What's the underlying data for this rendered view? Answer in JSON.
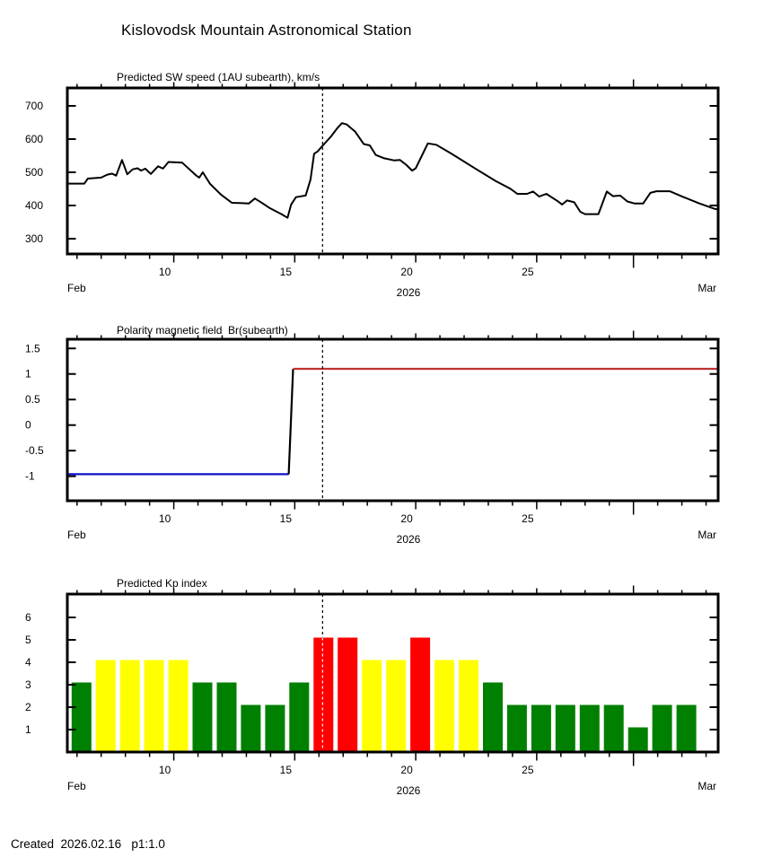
{
  "page": {
    "title": "Kislovodsk Mountain Astronomical Station",
    "footer": "Created  2026.02.16   p1:1.0"
  },
  "x_axis": {
    "month_start_label": "Feb",
    "month_end_label": "Mar",
    "year_label": "2026",
    "labeled_days": [
      10,
      15,
      20,
      25
    ],
    "long_tick_day": 29,
    "minor_tick_day_min": 6,
    "minor_tick_day_max": 32,
    "domain": [
      5.6,
      32.5
    ],
    "forecast_day": 16.15,
    "note": "days are day-of-February 2026; 29=Mar 1, 30=Mar 2, 31=Mar 3"
  },
  "chart_data": [
    {
      "id": "sw_speed",
      "type": "line",
      "title": "Predicted SW speed (1AU subearth), km/s",
      "yticks": [
        300,
        400,
        500,
        600,
        700
      ],
      "ylim": [
        254,
        754
      ],
      "grid": false,
      "line_color": "#000000",
      "points": [
        [
          5.6,
          466
        ],
        [
          6.3,
          466
        ],
        [
          6.45,
          481
        ],
        [
          7.0,
          484
        ],
        [
          7.25,
          493
        ],
        [
          7.45,
          496
        ],
        [
          7.62,
          490
        ],
        [
          7.86,
          537
        ],
        [
          8.08,
          494
        ],
        [
          8.3,
          509
        ],
        [
          8.5,
          512
        ],
        [
          8.65,
          505
        ],
        [
          8.82,
          511
        ],
        [
          9.05,
          495
        ],
        [
          9.35,
          518
        ],
        [
          9.55,
          511
        ],
        [
          9.78,
          531
        ],
        [
          10.35,
          529
        ],
        [
          10.9,
          492
        ],
        [
          11.05,
          484
        ],
        [
          11.2,
          500
        ],
        [
          11.5,
          465
        ],
        [
          11.95,
          433
        ],
        [
          12.4,
          408
        ],
        [
          12.85,
          407
        ],
        [
          13.1,
          406
        ],
        [
          13.35,
          421
        ],
        [
          13.6,
          410
        ],
        [
          13.95,
          393
        ],
        [
          14.45,
          374
        ],
        [
          14.7,
          363
        ],
        [
          14.85,
          403
        ],
        [
          15.05,
          425
        ],
        [
          15.45,
          430
        ],
        [
          15.65,
          478
        ],
        [
          15.8,
          556
        ],
        [
          15.95,
          563
        ],
        [
          16.15,
          580
        ],
        [
          16.5,
          608
        ],
        [
          16.75,
          632
        ],
        [
          16.95,
          648
        ],
        [
          17.15,
          644
        ],
        [
          17.5,
          622
        ],
        [
          17.85,
          585
        ],
        [
          18.1,
          581
        ],
        [
          18.35,
          552
        ],
        [
          18.7,
          542
        ],
        [
          19.1,
          536
        ],
        [
          19.35,
          537
        ],
        [
          19.6,
          523
        ],
        [
          19.85,
          505
        ],
        [
          20.0,
          512
        ],
        [
          20.5,
          587
        ],
        [
          20.85,
          583
        ],
        [
          21.5,
          555
        ],
        [
          22.4,
          514
        ],
        [
          23.3,
          474
        ],
        [
          23.9,
          451
        ],
        [
          24.2,
          435
        ],
        [
          24.6,
          435
        ],
        [
          24.85,
          442
        ],
        [
          25.1,
          427
        ],
        [
          25.4,
          435
        ],
        [
          25.87,
          413
        ],
        [
          26.05,
          403
        ],
        [
          26.25,
          415
        ],
        [
          26.55,
          410
        ],
        [
          26.8,
          381
        ],
        [
          27.0,
          374
        ],
        [
          27.55,
          374
        ],
        [
          27.9,
          442
        ],
        [
          28.15,
          428
        ],
        [
          28.45,
          430
        ],
        [
          28.75,
          412
        ],
        [
          29.05,
          406
        ],
        [
          29.4,
          406
        ],
        [
          29.7,
          438
        ],
        [
          29.95,
          443
        ],
        [
          30.5,
          443
        ],
        [
          31.05,
          426
        ],
        [
          31.7,
          407
        ],
        [
          32.35,
          390
        ],
        [
          32.5,
          388
        ]
      ]
    },
    {
      "id": "polarity_br",
      "type": "step",
      "title": "Polarity magnetic field  Br(subearth)",
      "yticks": [
        -1,
        -0.5,
        0,
        0.5,
        1,
        1.5
      ],
      "ylim": [
        -1.48,
        1.68
      ],
      "grid": false,
      "segments": [
        {
          "name": "negative-polarity",
          "color": "#1010c8",
          "points": [
            [
              5.6,
              -0.96
            ],
            [
              14.75,
              -0.96
            ]
          ]
        },
        {
          "name": "transition",
          "color": "#000000",
          "points": [
            [
              14.75,
              -0.96
            ],
            [
              14.93,
              1.1
            ]
          ]
        },
        {
          "name": "positive-polarity",
          "color": "#c03232",
          "points": [
            [
              14.93,
              1.1
            ],
            [
              32.5,
              1.1
            ]
          ]
        }
      ]
    },
    {
      "id": "kp_index",
      "type": "bar",
      "title": "Predicted Kp index",
      "yticks": [
        1,
        2,
        3,
        4,
        5,
        6
      ],
      "ylim": [
        0,
        7.04
      ],
      "grid": false,
      "level_colors": {
        "green": "#008000",
        "yellow": "#ffff00",
        "red": "#ff0000"
      },
      "bars": [
        {
          "date": "Feb 6",
          "day": 6,
          "value": 3,
          "color": "green"
        },
        {
          "date": "Feb 7",
          "day": 7,
          "value": 4,
          "color": "yellow"
        },
        {
          "date": "Feb 8",
          "day": 8,
          "value": 4,
          "color": "yellow"
        },
        {
          "date": "Feb 9",
          "day": 9,
          "value": 4,
          "color": "yellow"
        },
        {
          "date": "Feb 10",
          "day": 10,
          "value": 4,
          "color": "yellow"
        },
        {
          "date": "Feb 11",
          "day": 11,
          "value": 3,
          "color": "green"
        },
        {
          "date": "Feb 12",
          "day": 12,
          "value": 3,
          "color": "green"
        },
        {
          "date": "Feb 13",
          "day": 13,
          "value": 2,
          "color": "green"
        },
        {
          "date": "Feb 14",
          "day": 14,
          "value": 2,
          "color": "green"
        },
        {
          "date": "Feb 15",
          "day": 15,
          "value": 3,
          "color": "green"
        },
        {
          "date": "Feb 16",
          "day": 16,
          "value": 5,
          "color": "red"
        },
        {
          "date": "Feb 17",
          "day": 17,
          "value": 5,
          "color": "red"
        },
        {
          "date": "Feb 18",
          "day": 18,
          "value": 4,
          "color": "yellow"
        },
        {
          "date": "Feb 19",
          "day": 19,
          "value": 4,
          "color": "yellow"
        },
        {
          "date": "Feb 20",
          "day": 20,
          "value": 5,
          "color": "red"
        },
        {
          "date": "Feb 21",
          "day": 21,
          "value": 4,
          "color": "yellow"
        },
        {
          "date": "Feb 22",
          "day": 22,
          "value": 4,
          "color": "yellow"
        },
        {
          "date": "Feb 23",
          "day": 23,
          "value": 3,
          "color": "green"
        },
        {
          "date": "Feb 24",
          "day": 24,
          "value": 2,
          "color": "green"
        },
        {
          "date": "Feb 25",
          "day": 25,
          "value": 2,
          "color": "green"
        },
        {
          "date": "Feb 26",
          "day": 26,
          "value": 2,
          "color": "green"
        },
        {
          "date": "Feb 27",
          "day": 27,
          "value": 2,
          "color": "green"
        },
        {
          "date": "Feb 28",
          "day": 28,
          "value": 2,
          "color": "green"
        },
        {
          "date": "Mar 1",
          "day": 29,
          "value": 1,
          "color": "green"
        },
        {
          "date": "Mar 2",
          "day": 30,
          "value": 2,
          "color": "green"
        },
        {
          "date": "Mar 3",
          "day": 31,
          "value": 2,
          "color": "green"
        }
      ]
    }
  ]
}
